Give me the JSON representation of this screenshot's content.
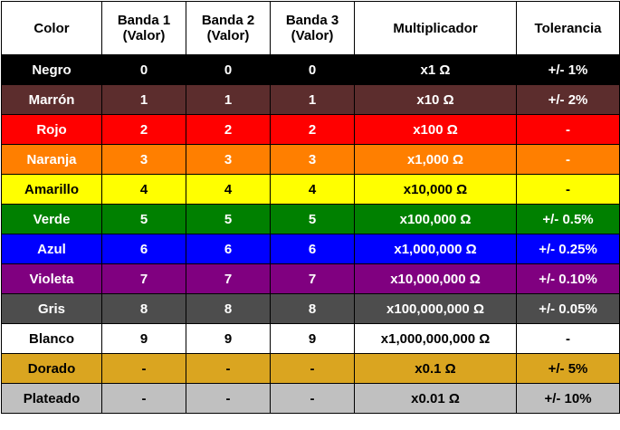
{
  "headers": [
    "Color",
    "Banda 1\n(Valor)",
    "Banda 2\n(Valor)",
    "Banda 3\n(Valor)",
    "Multiplicador",
    "Tolerancia"
  ],
  "rows": [
    {
      "color": "Negro",
      "band1": "0",
      "band2": "0",
      "band3": "0",
      "multiplier": "x1 Ω",
      "tolerance": "+/- 1%",
      "bg": "#000000",
      "fg": "#ffffff"
    },
    {
      "color": "Marrón",
      "band1": "1",
      "band2": "1",
      "band3": "1",
      "multiplier": "x10 Ω",
      "tolerance": "+/- 2%",
      "bg": "#5c2d2d",
      "fg": "#ffffff"
    },
    {
      "color": "Rojo",
      "band1": "2",
      "band2": "2",
      "band3": "2",
      "multiplier": "x100 Ω",
      "tolerance": "-",
      "bg": "#ff0000",
      "fg": "#ffffff"
    },
    {
      "color": "Naranja",
      "band1": "3",
      "band2": "3",
      "band3": "3",
      "multiplier": "x1,000 Ω",
      "tolerance": "-",
      "bg": "#ff7f00",
      "fg": "#ffffff"
    },
    {
      "color": "Amarillo",
      "band1": "4",
      "band2": "4",
      "band3": "4",
      "multiplier": "x10,000 Ω",
      "tolerance": "-",
      "bg": "#ffff00",
      "fg": "#000000"
    },
    {
      "color": "Verde",
      "band1": "5",
      "band2": "5",
      "band3": "5",
      "multiplier": "x100,000 Ω",
      "tolerance": "+/- 0.5%",
      "bg": "#008000",
      "fg": "#ffffff"
    },
    {
      "color": "Azul",
      "band1": "6",
      "band2": "6",
      "band3": "6",
      "multiplier": "x1,000,000 Ω",
      "tolerance": "+/- 0.25%",
      "bg": "#0000ff",
      "fg": "#ffffff"
    },
    {
      "color": "Violeta",
      "band1": "7",
      "band2": "7",
      "band3": "7",
      "multiplier": "x10,000,000 Ω",
      "tolerance": "+/- 0.10%",
      "bg": "#800080",
      "fg": "#ffffff"
    },
    {
      "color": "Gris",
      "band1": "8",
      "band2": "8",
      "band3": "8",
      "multiplier": "x100,000,000 Ω",
      "tolerance": "+/- 0.05%",
      "bg": "#4d4d4d",
      "fg": "#ffffff"
    },
    {
      "color": "Blanco",
      "band1": "9",
      "band2": "9",
      "band3": "9",
      "multiplier": "x1,000,000,000 Ω",
      "tolerance": "-",
      "bg": "#ffffff",
      "fg": "#000000"
    },
    {
      "color": "Dorado",
      "band1": "-",
      "band2": "-",
      "band3": "-",
      "multiplier": "x0.1 Ω",
      "tolerance": "+/- 5%",
      "bg": "#daa520",
      "fg": "#000000"
    },
    {
      "color": "Plateado",
      "band1": "-",
      "band2": "-",
      "band3": "-",
      "multiplier": "x0.01 Ω",
      "tolerance": "+/- 10%",
      "bg": "#c0c0c0",
      "fg": "#000000"
    }
  ]
}
